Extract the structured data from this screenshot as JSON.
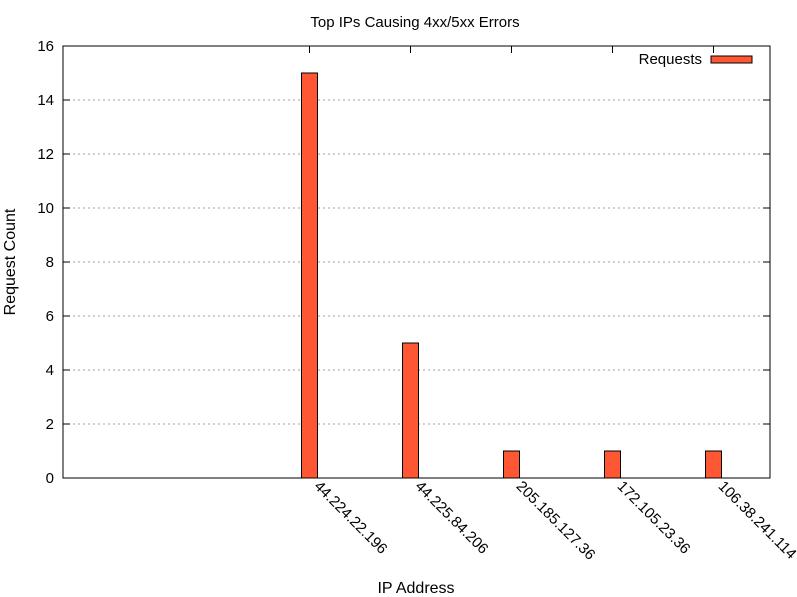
{
  "chart_data": {
    "type": "bar",
    "title": "Top IPs Causing 4xx/5xx Errors",
    "xlabel": "IP Address",
    "ylabel": "Request Count",
    "categories": [
      "44.224.22.196",
      "44.225.84.206",
      "205.185.127.36",
      "172.105.23.36",
      "106.38.241.114"
    ],
    "series": [
      {
        "name": "Requests",
        "values": [
          15,
          5,
          1,
          1,
          1
        ]
      }
    ],
    "ylim": [
      0,
      16
    ],
    "yticks": [
      0,
      2,
      4,
      6,
      8,
      10,
      12,
      14,
      16
    ],
    "grid": true,
    "legend_position": "top-right",
    "colors": {
      "bar": "#ff5733",
      "grid": "#a0a0a0",
      "axis": "#000000"
    }
  }
}
